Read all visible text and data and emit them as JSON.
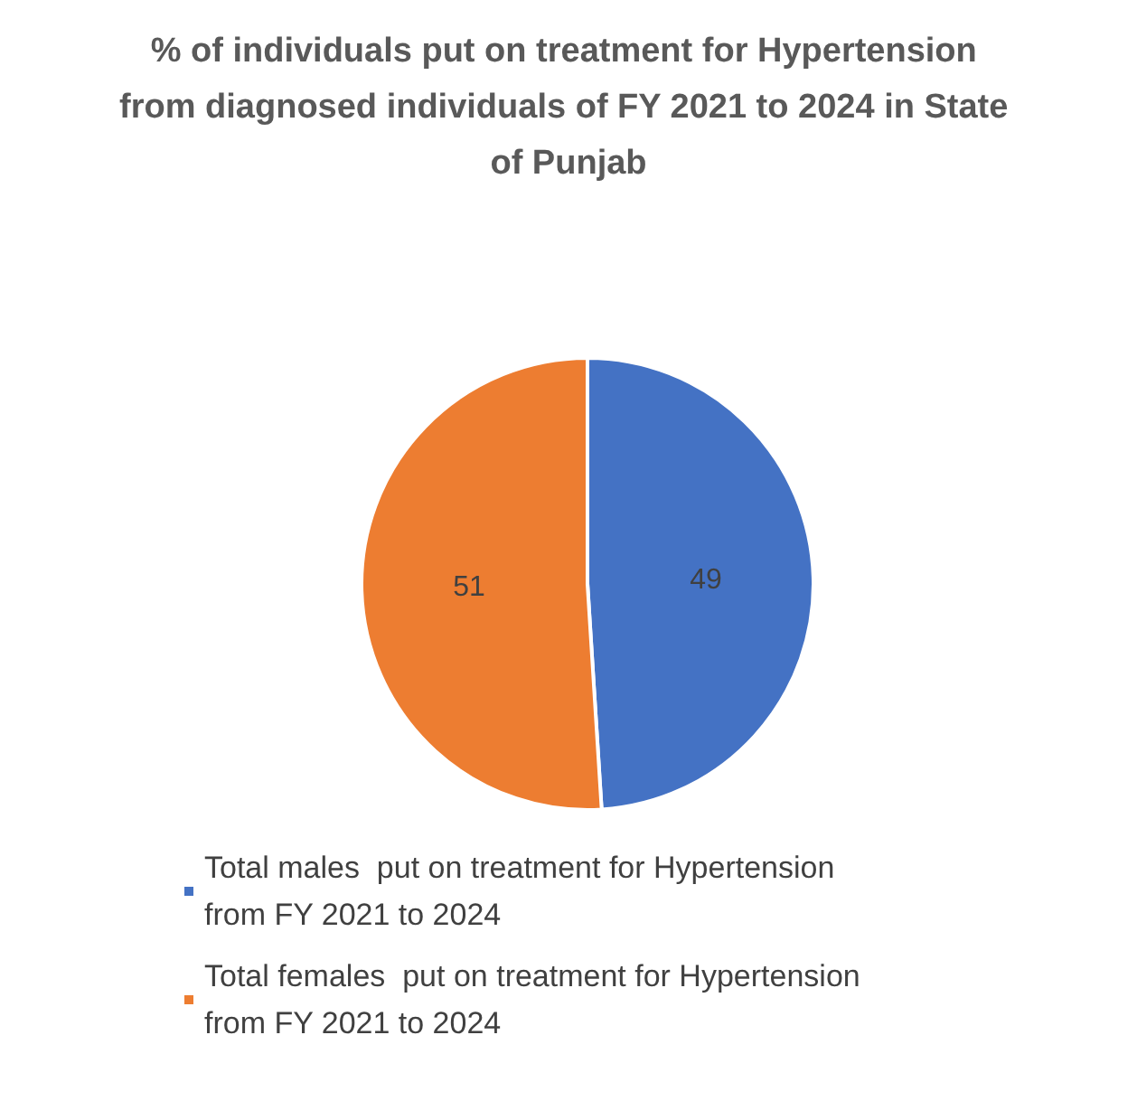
{
  "chart_data": {
    "type": "pie",
    "title": "% of individuals put on treatment for Hypertension from diagnosed individuals of FY 2021 to 2024 in State of Punjab",
    "categories": [
      "Total males  put on treatment for Hypertension from FY 2021 to 2024",
      "Total females  put on treatment for Hypertension from FY 2021 to 2024"
    ],
    "values": [
      49,
      51
    ],
    "colors": [
      "#4472c4",
      "#ed7d31"
    ],
    "data_labels": true,
    "legend": "bottom"
  }
}
